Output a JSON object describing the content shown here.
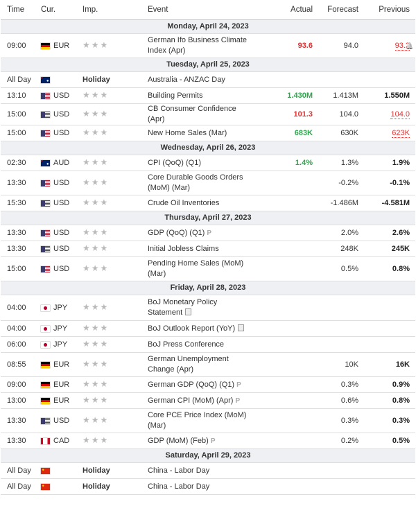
{
  "header": {
    "time": "Time",
    "cur": "Cur.",
    "imp": "Imp.",
    "event": "Event",
    "actual": "Actual",
    "forecast": "Forecast",
    "previous": "Previous"
  },
  "days": [
    {
      "date": "Monday, April 24, 2023",
      "events": [
        {
          "time": "09:00",
          "flag": "de",
          "cur": "EUR",
          "stars": "★★★",
          "event": "German Ifo Business Climate Index (Apr)",
          "actual": "93.6",
          "actual_color": "red",
          "forecast": "94.0",
          "previous": "93.2",
          "previous_color": "red",
          "bell": true,
          "rows": 2
        }
      ]
    },
    {
      "date": "Tuesday, April 25, 2023",
      "events": [
        {
          "time": "All Day",
          "flag": "au",
          "cur": "",
          "holiday": "Holiday",
          "event": "Australia - ANZAC Day",
          "rows": 1
        },
        {
          "time": "13:10",
          "flag": "us",
          "cur": "USD",
          "stars": "★★★",
          "event": "Building Permits",
          "actual": "1.430M",
          "actual_color": "green",
          "forecast": "1.413M",
          "previous": "1.550M",
          "rows": 1
        },
        {
          "time": "15:00",
          "flag": "us",
          "cur": "USD",
          "stars": "★★★",
          "event": "CB Consumer Confidence (Apr)",
          "actual": "101.3",
          "actual_color": "red",
          "forecast": "104.0",
          "previous": "104.0",
          "previous_color": "red",
          "rows": 1
        },
        {
          "time": "15:00",
          "flag": "us",
          "cur": "USD",
          "stars": "★★★",
          "event": "New Home Sales (Mar)",
          "actual": "683K",
          "actual_color": "green",
          "forecast": "630K",
          "previous": "623K",
          "previous_color": "red",
          "rows": 1
        }
      ]
    },
    {
      "date": "Wednesday, April 26, 2023",
      "events": [
        {
          "time": "02:30",
          "flag": "au",
          "cur": "AUD",
          "stars": "★★★",
          "event": "CPI (QoQ) (Q1)",
          "actual": "1.4%",
          "actual_color": "green",
          "forecast": "1.3%",
          "previous": "1.9%",
          "rows": 1
        },
        {
          "time": "13:30",
          "flag": "us",
          "cur": "USD",
          "stars": "★★★",
          "event": "Core Durable Goods Orders (MoM) (Mar)",
          "actual": "",
          "forecast": "-0.2%",
          "previous": "-0.1%",
          "rows": 2
        },
        {
          "time": "15:30",
          "flag": "us",
          "cur": "USD",
          "stars": "★★★",
          "event": "Crude Oil Inventories",
          "actual": "",
          "forecast": "-1.486M",
          "previous": "-4.581M",
          "rows": 1
        }
      ]
    },
    {
      "date": "Thursday, April 27, 2023",
      "events": [
        {
          "time": "13:30",
          "flag": "us",
          "cur": "USD",
          "stars": "★★★",
          "event": "GDP (QoQ) (Q1)",
          "p": "P",
          "actual": "",
          "forecast": "2.0%",
          "previous": "2.6%",
          "rows": 1
        },
        {
          "time": "13:30",
          "flag": "us",
          "cur": "USD",
          "stars": "★★★",
          "event": "Initial Jobless Claims",
          "actual": "",
          "forecast": "248K",
          "previous": "245K",
          "rows": 1
        },
        {
          "time": "15:00",
          "flag": "us",
          "cur": "USD",
          "stars": "★★★",
          "event": "Pending Home Sales (MoM) (Mar)",
          "actual": "",
          "forecast": "0.5%",
          "previous": "0.8%",
          "rows": 2
        }
      ]
    },
    {
      "date": "Friday, April 28, 2023",
      "events": [
        {
          "time": "04:00",
          "flag": "jp",
          "cur": "JPY",
          "stars": "★★★",
          "event": "BoJ Monetary Policy Statement",
          "doc": true,
          "actual": "",
          "forecast": "",
          "previous": "",
          "rows": 3
        },
        {
          "time": "04:00",
          "flag": "jp",
          "cur": "JPY",
          "stars": "★★★",
          "event": "BoJ Outlook Report (YoY)",
          "doc": true,
          "actual": "",
          "forecast": "",
          "previous": "",
          "rows": 1
        },
        {
          "time": "06:00",
          "flag": "jp",
          "cur": "JPY",
          "stars": "★★★",
          "event": "BoJ Press Conference",
          "actual": "",
          "forecast": "",
          "previous": "",
          "rows": 1
        },
        {
          "time": "08:55",
          "flag": "de",
          "cur": "EUR",
          "stars": "★★★",
          "event": "German Unemployment Change (Apr)",
          "actual": "",
          "forecast": "10K",
          "previous": "16K",
          "rows": 2
        },
        {
          "time": "09:00",
          "flag": "de",
          "cur": "EUR",
          "stars": "★★★",
          "event": "German GDP (QoQ) (Q1)",
          "p": "P",
          "actual": "",
          "forecast": "0.3%",
          "previous": "0.9%",
          "rows": 1
        },
        {
          "time": "13:00",
          "flag": "de",
          "cur": "EUR",
          "stars": "★★★",
          "event": "German CPI (MoM) (Apr)",
          "p": "P",
          "actual": "",
          "forecast": "0.6%",
          "previous": "0.8%",
          "rows": 1
        },
        {
          "time": "13:30",
          "flag": "us",
          "cur": "USD",
          "stars": "★★★",
          "event": "Core PCE Price Index (MoM) (Mar)",
          "actual": "",
          "forecast": "0.3%",
          "previous": "0.3%",
          "rows": 2
        },
        {
          "time": "13:30",
          "flag": "ca",
          "cur": "CAD",
          "stars": "★★★",
          "event": "GDP (MoM) (Feb)",
          "p": "P",
          "actual": "",
          "forecast": "0.2%",
          "previous": "0.5%",
          "rows": 1
        }
      ]
    },
    {
      "date": "Saturday, April 29, 2023",
      "events": [
        {
          "time": "All Day",
          "flag": "cn",
          "cur": "",
          "holiday": "Holiday",
          "event": "China - Labor Day",
          "rows": 1
        },
        {
          "time": "All Day",
          "flag": "cn",
          "cur": "",
          "holiday": "Holiday",
          "event": "China - Labor Day",
          "rows": 1
        }
      ]
    }
  ],
  "colors": {
    "red": "#e03131",
    "green": "#2ea64c",
    "day_bg": "#eef0f3"
  },
  "icons": {
    "bell": "bell-icon",
    "doc": "document-icon",
    "star": "star-icon"
  }
}
